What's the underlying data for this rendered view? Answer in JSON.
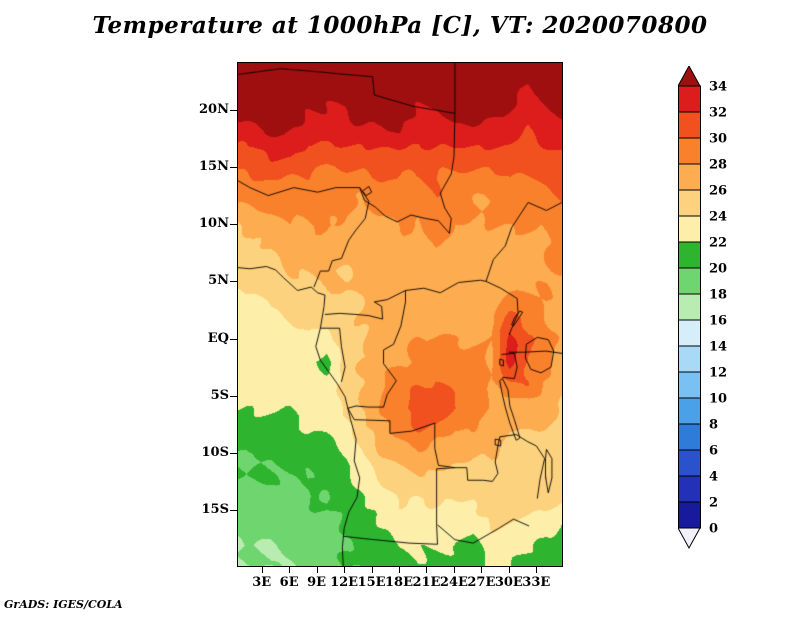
{
  "title": "Temperature at 1000hPa [C], VT: 2020070800",
  "attribution": "GrADS: IGES/COLA",
  "chart_data": {
    "type": "heatmap",
    "title": "Temperature at 1000hPa [C], VT: 2020070800",
    "units": "C",
    "x_axis": {
      "tick_labels": [
        "3E",
        "6E",
        "9E",
        "12E",
        "15E",
        "18E",
        "21E",
        "24E",
        "27E",
        "30E",
        "33E"
      ],
      "tick_lons": [
        3,
        6,
        9,
        12,
        15,
        18,
        21,
        24,
        27,
        30,
        33
      ]
    },
    "y_axis": {
      "tick_labels": [
        "20N",
        "15N",
        "10N",
        "5N",
        "EQ",
        "5S",
        "10S",
        "15S"
      ],
      "tick_lats": [
        20,
        15,
        10,
        5,
        0,
        -5,
        -10,
        -15
      ]
    },
    "map_extent": {
      "lon_min": 0.3,
      "lon_max": 35.7,
      "lat_min": -19.8,
      "lat_max": 24.2
    },
    "colorbar": {
      "levels": [
        0,
        2,
        4,
        6,
        8,
        10,
        12,
        14,
        16,
        18,
        20,
        22,
        24,
        26,
        28,
        30,
        32,
        34
      ],
      "tick_labels_top_to_bottom": [
        "34",
        "32",
        "30",
        "28",
        "26",
        "24",
        "22",
        "20",
        "18",
        "16",
        "14",
        "12",
        "10",
        "8",
        "6",
        "4",
        "2",
        "0"
      ],
      "colors_low_to_high": [
        "#f2f1fb",
        "#161a9b",
        "#2331b8",
        "#2a52cc",
        "#2f7bd9",
        "#4ba1e8",
        "#79c1f2",
        "#a8daf8",
        "#d6eefa",
        "#b8ecb0",
        "#6fd66f",
        "#2eb42e",
        "#fdeeaa",
        "#fdd27e",
        "#fdac4f",
        "#f9812c",
        "#f1511e",
        "#dd1c1c",
        "#a00f0f"
      ]
    },
    "grid": {
      "lons": [
        0,
        2,
        4,
        6,
        8,
        10,
        12,
        14,
        16,
        18,
        20,
        22,
        24,
        26,
        28,
        30,
        32,
        34,
        36
      ],
      "lats": [
        24,
        22,
        20,
        18,
        16,
        14,
        12,
        10,
        8,
        6,
        4,
        2,
        0,
        -2,
        -4,
        -6,
        -8,
        -10,
        -12,
        -14,
        -16,
        -18,
        -20
      ],
      "values_c": [
        [
          35,
          35,
          35,
          35,
          35,
          35,
          35,
          35,
          35,
          35,
          35,
          35,
          35,
          35,
          35,
          35,
          35,
          35,
          35
        ],
        [
          35,
          35,
          35,
          35,
          35,
          35,
          35,
          35,
          35,
          35,
          35,
          35,
          35,
          35,
          35,
          35,
          34,
          35,
          35
        ],
        [
          34,
          35,
          35,
          35,
          34,
          34,
          34,
          35,
          35,
          35,
          34,
          34,
          35,
          35,
          35,
          34,
          33,
          34,
          35
        ],
        [
          33,
          33,
          34,
          34,
          33,
          33,
          33,
          33,
          33,
          34,
          33,
          33,
          33,
          33,
          33,
          33,
          32,
          33,
          33
        ],
        [
          31,
          31,
          32,
          32,
          31,
          31,
          31,
          31,
          31,
          31,
          31,
          31,
          31,
          31,
          31,
          31,
          31,
          31,
          32
        ],
        [
          29,
          30,
          30,
          30,
          30,
          29,
          29,
          29,
          30,
          30,
          30,
          30,
          29,
          29,
          29,
          30,
          30,
          30,
          31
        ],
        [
          28,
          28,
          29,
          29,
          29,
          29,
          28,
          28,
          29,
          29,
          29,
          30,
          29,
          28,
          28,
          29,
          29,
          29,
          30
        ],
        [
          26,
          27,
          27,
          28,
          28,
          28,
          28,
          27,
          27,
          28,
          28,
          29,
          28,
          28,
          28,
          28,
          28,
          28,
          29
        ],
        [
          25,
          26,
          26,
          27,
          27,
          27,
          27,
          27,
          27,
          27,
          27,
          28,
          28,
          27,
          27,
          27,
          27,
          28,
          28
        ],
        [
          24,
          25,
          25,
          26,
          26,
          26,
          26,
          27,
          27,
          27,
          27,
          27,
          27,
          27,
          27,
          27,
          27,
          28,
          28
        ],
        [
          24,
          24,
          25,
          25,
          25,
          26,
          26,
          26,
          27,
          27,
          27,
          27,
          27,
          27,
          27,
          28,
          28,
          28,
          27
        ],
        [
          23,
          23,
          24,
          24,
          25,
          25,
          26,
          26,
          27,
          27,
          27,
          27,
          27,
          27,
          28,
          31,
          29,
          28,
          27
        ],
        [
          23,
          23,
          23,
          23,
          24,
          23,
          25,
          26,
          27,
          27,
          28,
          28,
          28,
          28,
          28,
          33,
          30,
          29,
          27
        ],
        [
          23,
          23,
          23,
          23,
          23,
          21,
          25,
          26,
          27,
          28,
          28,
          29,
          29,
          29,
          28,
          33,
          30,
          29,
          27
        ],
        [
          23,
          23,
          23,
          23,
          23,
          23,
          25,
          26,
          28,
          29,
          30,
          30,
          30,
          29,
          28,
          29,
          30,
          28,
          26
        ],
        [
          22,
          22,
          22,
          22,
          23,
          23,
          24,
          26,
          28,
          30,
          31,
          32,
          30,
          29,
          28,
          27,
          27,
          27,
          26
        ],
        [
          21,
          21,
          21,
          21,
          22,
          22,
          23,
          25,
          27,
          29,
          30,
          29,
          28,
          28,
          27,
          26,
          26,
          26,
          25
        ],
        [
          20,
          20,
          20,
          21,
          21,
          21,
          22,
          24,
          26,
          27,
          28,
          27,
          27,
          26,
          26,
          25,
          25,
          25,
          25
        ],
        [
          20,
          20,
          20,
          20,
          20,
          21,
          21,
          23,
          24,
          25,
          26,
          26,
          25,
          25,
          25,
          25,
          25,
          26,
          25
        ],
        [
          19,
          19,
          19,
          20,
          20,
          20,
          21,
          22,
          23,
          24,
          24,
          24,
          24,
          24,
          25,
          25,
          25,
          25,
          24
        ],
        [
          19,
          19,
          19,
          19,
          19,
          20,
          20,
          21,
          22,
          23,
          23,
          23,
          23,
          23,
          24,
          24,
          24,
          23,
          22
        ],
        [
          18,
          18,
          18,
          19,
          19,
          19,
          20,
          21,
          21,
          22,
          22,
          22,
          22,
          21,
          23,
          23,
          22,
          21,
          21
        ],
        [
          18,
          18,
          18,
          18,
          19,
          19,
          20,
          20,
          21,
          21,
          22,
          21,
          21,
          21,
          22,
          22,
          21,
          21,
          21
        ]
      ]
    }
  }
}
